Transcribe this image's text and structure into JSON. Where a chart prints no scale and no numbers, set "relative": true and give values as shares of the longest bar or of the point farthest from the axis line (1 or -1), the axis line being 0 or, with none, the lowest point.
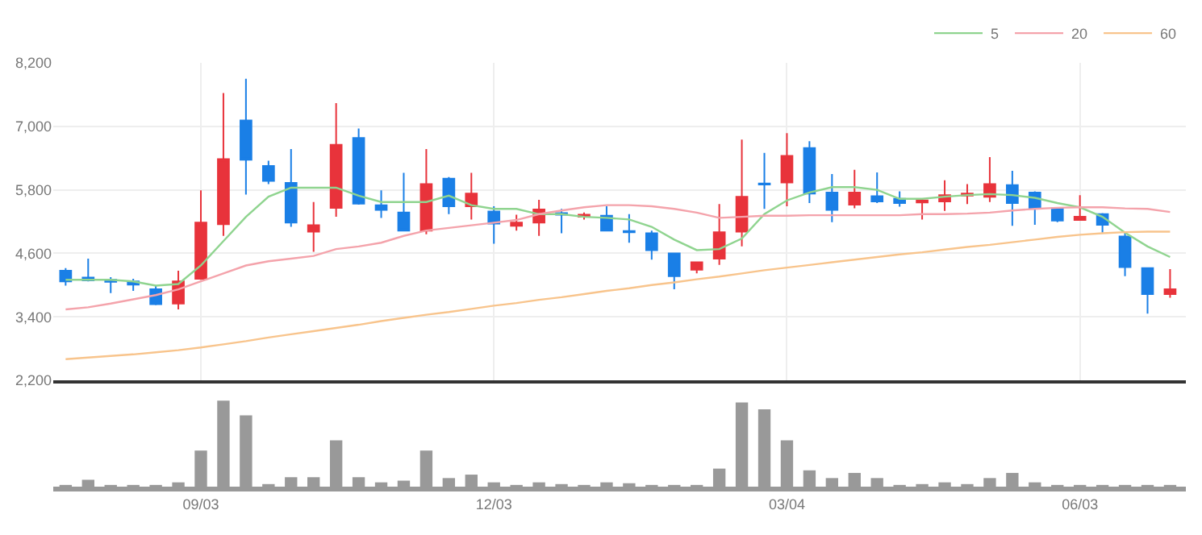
{
  "chart_data": [
    {
      "type": "candlestick",
      "categories": [
        null,
        null,
        null,
        null,
        null,
        null,
        null,
        null,
        null,
        null,
        null,
        null,
        null,
        null,
        null,
        null,
        null,
        null,
        null,
        null,
        null,
        null,
        null,
        null,
        null,
        null,
        null,
        null,
        null,
        null,
        null,
        null,
        null,
        null,
        null,
        null,
        null,
        null,
        null,
        null,
        null,
        null,
        null,
        null,
        null,
        null,
        null,
        null,
        null,
        null
      ],
      "ohlc": [
        [
          4270,
          4320,
          3990,
          4070
        ],
        [
          4140,
          4500,
          4070,
          4090
        ],
        [
          4100,
          4150,
          3850,
          4060
        ],
        [
          4070,
          4120,
          3890,
          4010
        ],
        [
          3920,
          3990,
          3620,
          3640
        ],
        [
          3650,
          4270,
          3540,
          4070
        ],
        [
          4120,
          5790,
          4100,
          5180
        ],
        [
          5150,
          7630,
          4930,
          6380
        ],
        [
          7110,
          7900,
          5710,
          6370
        ],
        [
          6250,
          6350,
          5910,
          5970
        ],
        [
          5930,
          6570,
          5100,
          5180
        ],
        [
          5010,
          5570,
          4630,
          5130
        ],
        [
          5460,
          7440,
          5290,
          6650
        ],
        [
          6780,
          6960,
          5520,
          5540
        ],
        [
          5510,
          5790,
          5270,
          5420
        ],
        [
          5370,
          6120,
          5030,
          5030
        ],
        [
          5030,
          6570,
          4960,
          5910
        ],
        [
          6010,
          6040,
          5340,
          5490
        ],
        [
          5490,
          6120,
          5240,
          5730
        ],
        [
          5390,
          5490,
          4780,
          5160
        ],
        [
          5120,
          5330,
          5030,
          5180
        ],
        [
          5180,
          5610,
          4930,
          5430
        ],
        [
          5360,
          5440,
          4980,
          5330
        ],
        [
          5290,
          5370,
          5240,
          5330
        ],
        [
          5310,
          5490,
          5030,
          5030
        ],
        [
          5020,
          5340,
          4800,
          5000
        ],
        [
          4980,
          5030,
          4480,
          4660
        ],
        [
          4600,
          4600,
          3920,
          4170
        ],
        [
          4290,
          4430,
          4220,
          4430
        ],
        [
          4500,
          5530,
          4380,
          5000
        ],
        [
          5010,
          6750,
          4730,
          5670
        ],
        [
          5920,
          6500,
          5440,
          5900
        ],
        [
          5940,
          6870,
          5490,
          6440
        ],
        [
          6590,
          6720,
          5550,
          5730
        ],
        [
          5750,
          6100,
          5190,
          5420
        ],
        [
          5520,
          6180,
          5450,
          5750
        ],
        [
          5680,
          6130,
          5550,
          5580
        ],
        [
          5630,
          5770,
          5480,
          5550
        ],
        [
          5560,
          5630,
          5240,
          5600
        ],
        [
          5580,
          5980,
          5400,
          5700
        ],
        [
          5690,
          5910,
          5530,
          5730
        ],
        [
          5670,
          6420,
          5570,
          5910
        ],
        [
          5890,
          6160,
          5120,
          5550
        ],
        [
          5750,
          5770,
          5140,
          5450
        ],
        [
          5450,
          5470,
          5190,
          5220
        ],
        [
          5230,
          5700,
          5220,
          5290
        ],
        [
          5340,
          5360,
          4990,
          5140
        ],
        [
          4920,
          4990,
          4170,
          4340
        ],
        [
          4320,
          4320,
          3460,
          3830
        ],
        [
          3830,
          4300,
          3760,
          3920
        ]
      ],
      "series": [
        {
          "name": "5",
          "type": "line",
          "color": "#8fd48f",
          "values": [
            4100,
            4100,
            4100,
            4070,
            3990,
            4020,
            4370,
            4830,
            5290,
            5670,
            5840,
            5840,
            5840,
            5690,
            5570,
            5570,
            5570,
            5690,
            5510,
            5440,
            5440,
            5340,
            5340,
            5290,
            5270,
            5240,
            5100,
            4860,
            4660,
            4680,
            4880,
            5340,
            5600,
            5750,
            5850,
            5850,
            5800,
            5630,
            5630,
            5670,
            5700,
            5720,
            5700,
            5650,
            5550,
            5470,
            5290,
            4990,
            4730,
            4530
          ]
        },
        {
          "name": "20",
          "type": "line",
          "color": "#f4a3ab",
          "values": [
            3540,
            3580,
            3650,
            3730,
            3810,
            3920,
            4070,
            4220,
            4370,
            4450,
            4500,
            4550,
            4680,
            4730,
            4800,
            4930,
            5030,
            5080,
            5130,
            5180,
            5230,
            5340,
            5410,
            5470,
            5510,
            5510,
            5490,
            5440,
            5370,
            5270,
            5290,
            5310,
            5310,
            5320,
            5320,
            5320,
            5320,
            5320,
            5340,
            5340,
            5350,
            5370,
            5410,
            5440,
            5460,
            5470,
            5470,
            5450,
            5440,
            5380
          ]
        },
        {
          "name": "60",
          "type": "line",
          "color": "#f8c48c",
          "values": [
            2600,
            2630,
            2660,
            2690,
            2730,
            2770,
            2820,
            2880,
            2940,
            3010,
            3070,
            3130,
            3190,
            3250,
            3320,
            3380,
            3440,
            3490,
            3550,
            3610,
            3660,
            3720,
            3770,
            3830,
            3890,
            3940,
            4000,
            4050,
            4110,
            4160,
            4220,
            4280,
            4330,
            4380,
            4430,
            4480,
            4530,
            4580,
            4620,
            4670,
            4720,
            4760,
            4810,
            4860,
            4910,
            4950,
            4980,
            5000,
            5010,
            5010
          ]
        }
      ],
      "ylim": [
        2200,
        8200
      ],
      "yticks": [
        {
          "value": 2200,
          "label": "2,200"
        },
        {
          "value": 3400,
          "label": "3,400"
        },
        {
          "value": 4600,
          "label": "4,600"
        },
        {
          "value": 5800,
          "label": "5,800"
        },
        {
          "value": 7000,
          "label": "7,000"
        },
        {
          "value": 8200,
          "label": "8,200"
        }
      ],
      "grid": true,
      "legend": "top right",
      "tick_labels": "y"
    },
    {
      "type": "bar",
      "categories": [
        null,
        null,
        null,
        null,
        null,
        null,
        "09/03",
        null,
        null,
        null,
        null,
        null,
        null,
        null,
        null,
        null,
        null,
        null,
        null,
        "12/03",
        null,
        null,
        null,
        null,
        null,
        null,
        null,
        null,
        null,
        null,
        null,
        null,
        "03/04",
        null,
        null,
        null,
        null,
        null,
        null,
        null,
        null,
        null,
        null,
        null,
        null,
        "06/03",
        null,
        null,
        null,
        null
      ],
      "values": [
        0.02,
        0.08,
        0.02,
        0.02,
        0.02,
        0.05,
        0.42,
        1,
        0.83,
        0.03,
        0.11,
        0.11,
        0.54,
        0.11,
        0.05,
        0.07,
        0.42,
        0.1,
        0.14,
        0.05,
        0.02,
        0.05,
        0.03,
        0.02,
        0.05,
        0.04,
        0.02,
        0.02,
        0.02,
        0.21,
        0.98,
        0.9,
        0.54,
        0.19,
        0.1,
        0.16,
        0.1,
        0.02,
        0.03,
        0.05,
        0.03,
        0.1,
        0.16,
        0.05,
        0.02,
        0.02,
        0.02,
        0.02,
        0.02,
        0.02
      ],
      "color": "#999999",
      "relative": true,
      "tick_labels": "x"
    }
  ]
}
